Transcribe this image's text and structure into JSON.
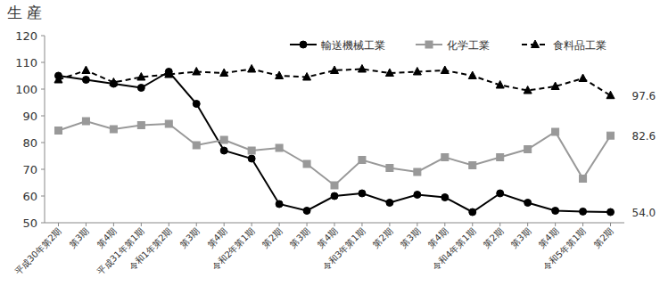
{
  "chart_data": {
    "type": "line",
    "title": "生 産",
    "categories": [
      "平成30年第2期",
      "第3期",
      "第4期",
      "平成31年第1期",
      "令和1年第2期",
      "第3期",
      "第4期",
      "令和2年第1期",
      "第2期",
      "第3期",
      "第4期",
      "令和3年第1期",
      "第2期",
      "第3期",
      "第4期",
      "令和4年第1期",
      "第2期",
      "第3期",
      "第4期",
      "令和5年第1期",
      "第2期"
    ],
    "series": [
      {
        "name": "輸送機械工業",
        "color": "#000000",
        "marker": "circle",
        "line_style": "solid",
        "values": [
          105,
          103.5,
          102,
          100.5,
          106.5,
          94.5,
          77,
          74,
          57,
          54.5,
          60,
          61,
          57.5,
          60.5,
          59.5,
          54,
          61,
          57.5,
          54.5,
          54.2,
          54.0
        ],
        "value_labels": [
          null,
          null,
          null,
          null,
          null,
          null,
          null,
          null,
          null,
          null,
          null,
          null,
          null,
          null,
          null,
          null,
          null,
          null,
          null,
          null,
          "54.0"
        ]
      },
      {
        "name": "化学工業",
        "color": "#999999",
        "marker": "square",
        "line_style": "solid",
        "values": [
          84.5,
          88,
          85,
          86.5,
          87,
          79,
          81,
          77,
          78,
          72,
          64,
          73.5,
          70.5,
          69,
          74.5,
          71.5,
          74.5,
          77.5,
          84,
          66.5,
          82.6
        ],
        "value_labels": [
          null,
          null,
          null,
          null,
          null,
          null,
          null,
          null,
          null,
          null,
          null,
          null,
          null,
          null,
          null,
          null,
          null,
          null,
          null,
          null,
          "82.6"
        ]
      },
      {
        "name": "食料品工業",
        "color": "#000000",
        "marker": "triangle",
        "line_style": "dashed",
        "values": [
          103.5,
          107,
          102.5,
          104.5,
          105.5,
          106.5,
          106,
          107.5,
          105,
          104.5,
          107,
          107.5,
          106,
          106.5,
          107,
          105,
          101.5,
          99.5,
          101,
          104,
          97.6
        ],
        "value_labels": [
          null,
          null,
          null,
          null,
          null,
          null,
          null,
          null,
          null,
          null,
          null,
          null,
          null,
          null,
          null,
          null,
          null,
          null,
          null,
          null,
          "97.6"
        ]
      }
    ],
    "ylim": [
      50,
      120
    ],
    "yticks": [
      50,
      60,
      70,
      80,
      90,
      100,
      110,
      120
    ],
    "grid": false,
    "legend": "top"
  }
}
